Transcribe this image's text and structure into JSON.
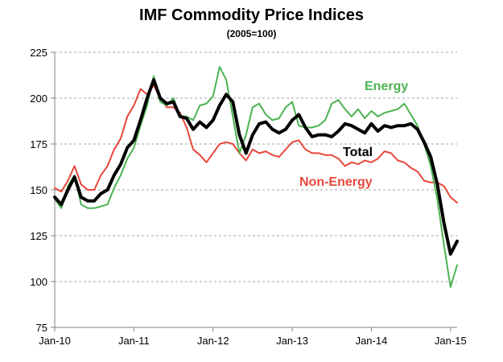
{
  "chart_data": {
    "type": "line",
    "title": "IMF Commodity Price Indices",
    "subtitle": "(2005=100)",
    "xlabel": "",
    "ylabel": "",
    "ylim": [
      75,
      225
    ],
    "yticks": [
      75,
      100,
      125,
      150,
      175,
      200,
      225
    ],
    "xticks": [
      "Jan-10",
      "Jan-11",
      "Jan-12",
      "Jan-13",
      "Jan-14",
      "Jan-15"
    ],
    "x": [
      "2010-01",
      "2010-02",
      "2010-03",
      "2010-04",
      "2010-05",
      "2010-06",
      "2010-07",
      "2010-08",
      "2010-09",
      "2010-10",
      "2010-11",
      "2010-12",
      "2011-01",
      "2011-02",
      "2011-03",
      "2011-04",
      "2011-05",
      "2011-06",
      "2011-07",
      "2011-08",
      "2011-09",
      "2011-10",
      "2011-11",
      "2011-12",
      "2012-01",
      "2012-02",
      "2012-03",
      "2012-04",
      "2012-05",
      "2012-06",
      "2012-07",
      "2012-08",
      "2012-09",
      "2012-10",
      "2012-11",
      "2012-12",
      "2013-01",
      "2013-02",
      "2013-03",
      "2013-04",
      "2013-05",
      "2013-06",
      "2013-07",
      "2013-08",
      "2013-09",
      "2013-10",
      "2013-11",
      "2013-12",
      "2014-01",
      "2014-02",
      "2014-03",
      "2014-04",
      "2014-05",
      "2014-06",
      "2014-07",
      "2014-08",
      "2014-09",
      "2014-10",
      "2014-11",
      "2014-12",
      "2015-01",
      "2015-02"
    ],
    "grid": true,
    "series": [
      {
        "name": "Energy",
        "color": "#4db352",
        "values": [
          145,
          140,
          152,
          158,
          142,
          140,
          140,
          141,
          142,
          151,
          158,
          167,
          173,
          185,
          196,
          212,
          198,
          196,
          200,
          190,
          190,
          188,
          196,
          197,
          201,
          217,
          210,
          190,
          170,
          180,
          195,
          197,
          191,
          188,
          189,
          195,
          198,
          185,
          184,
          184,
          185,
          188,
          197,
          199,
          194,
          190,
          194,
          189,
          193,
          190,
          192,
          193,
          194,
          197,
          191,
          185,
          175,
          163,
          145,
          120,
          97,
          109
        ]
      },
      {
        "name": "Total",
        "color": "#000000",
        "values": [
          146,
          142,
          150,
          157,
          146,
          144,
          144,
          148,
          150,
          158,
          164,
          173,
          177,
          188,
          200,
          210,
          200,
          197,
          198,
          190,
          189,
          183,
          187,
          184,
          188,
          196,
          202,
          198,
          180,
          170,
          180,
          186,
          187,
          183,
          181,
          183,
          188,
          191,
          184,
          179,
          180,
          180,
          179,
          182,
          186,
          185,
          183,
          181,
          186,
          182,
          185,
          184,
          185,
          185,
          186,
          183,
          176,
          168,
          153,
          132,
          115,
          122
        ]
      },
      {
        "name": "Non-Energy",
        "color": "#e8473c",
        "values": [
          151,
          149,
          155,
          163,
          153,
          150,
          150,
          158,
          163,
          172,
          178,
          190,
          196,
          205,
          202,
          207,
          200,
          195,
          195,
          192,
          184,
          172,
          169,
          165,
          170,
          175,
          176,
          175,
          170,
          166,
          172,
          170,
          171,
          169,
          168,
          172,
          176,
          177,
          172,
          170,
          170,
          169,
          169,
          167,
          163,
          165,
          164,
          166,
          165,
          167,
          171,
          170,
          166,
          165,
          162,
          160,
          155,
          154,
          154,
          152,
          146,
          143
        ]
      }
    ],
    "series_labels": {
      "energy": "Energy",
      "total": "Total",
      "non_energy": "Non-Energy"
    }
  }
}
